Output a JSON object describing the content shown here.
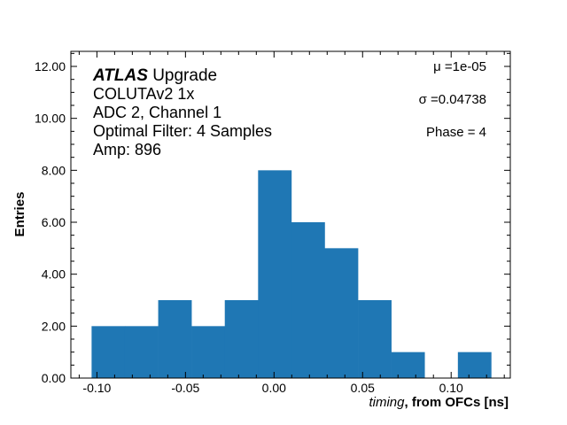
{
  "chart_data": {
    "type": "bar",
    "subtype": "histogram",
    "bin_edges": [
      -0.103,
      -0.0842,
      -0.0654,
      -0.0466,
      -0.0278,
      -0.009,
      0.0098,
      0.0286,
      0.0474,
      0.0662,
      0.085,
      0.1038,
      0.1226
    ],
    "values": [
      2,
      2,
      3,
      2,
      3,
      8,
      6,
      5,
      3,
      1,
      0,
      1
    ],
    "color": "#1f77b4",
    "xlabel_italic": "timing",
    "xlabel_bold": ", from OFCs [ns]",
    "ylabel": "Entries",
    "xlim": [
      -0.1147,
      0.1334
    ],
    "ylim": [
      0,
      12.58
    ],
    "xticks": [
      "-0.10",
      "-0.05",
      "0.00",
      "0.05",
      "0.10"
    ],
    "xtick_values": [
      -0.1,
      -0.05,
      0,
      0.05,
      0.1
    ],
    "yticks": [
      "0.00",
      "2.00",
      "4.00",
      "6.00",
      "8.00",
      "10.00",
      "12.00"
    ],
    "ytick_values": [
      0,
      2,
      4,
      6,
      8,
      10,
      12
    ],
    "grid": false,
    "annotations_left": {
      "atlas": "ATLAS",
      "atlas_suffix": " Upgrade",
      "lines": [
        "COLUTAv2 1x",
        "ADC 2, Channel 1",
        "Optimal Filter: 4 Samples",
        "Amp: 896"
      ]
    },
    "annotations_right": [
      "μ =1e-05",
      "σ =0.04738",
      "Phase = 4"
    ]
  }
}
